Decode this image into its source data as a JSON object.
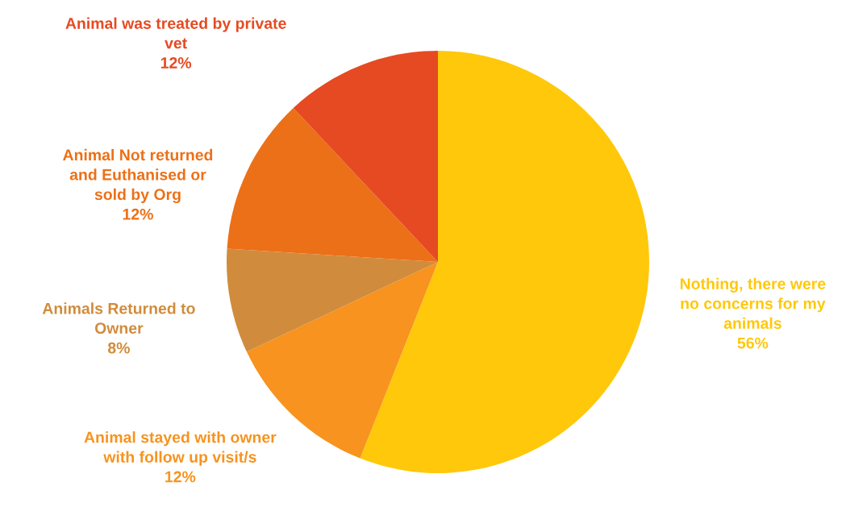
{
  "chart_data": {
    "type": "pie",
    "categories": [
      "Nothing, there were no concerns for my animals",
      "Animal stayed with owner with follow up visit/s",
      "Animals Returned to Owner",
      "Animal Not returned and Euthanised or sold by Org",
      "Animal was treated by private vet"
    ],
    "values": [
      56,
      12,
      8,
      12,
      12
    ],
    "colors": [
      "#ffc80a",
      "#f7931e",
      "#d08c3c",
      "#ec7017",
      "#e64a22"
    ],
    "value_labels": [
      "56%",
      "12%",
      "8%",
      "12%",
      "12%"
    ]
  }
}
